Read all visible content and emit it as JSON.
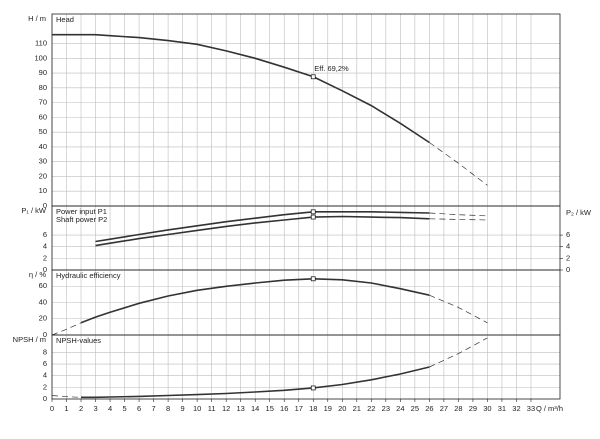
{
  "chart_data": [
    {
      "type": "line",
      "ylabel": "H / m",
      "ylim": [
        0,
        130
      ],
      "yticks": [
        0,
        10,
        20,
        30,
        40,
        50,
        60,
        70,
        80,
        90,
        100,
        110
      ],
      "xlim": [
        0,
        35
      ],
      "xticks": [
        0,
        1,
        2,
        3,
        4,
        5,
        6,
        7,
        8,
        9,
        10,
        11,
        12,
        13,
        14,
        15,
        16,
        17,
        18,
        19,
        20,
        21,
        22,
        23,
        24,
        25,
        26,
        27,
        28,
        29,
        30,
        31,
        32,
        33
      ],
      "x": [
        0,
        1,
        2,
        3,
        4,
        6,
        8,
        10,
        12,
        14,
        16,
        18,
        20,
        22,
        24,
        26,
        28,
        30
      ],
      "grid": true,
      "marker_x": 18,
      "annotation": "Eff. 69,2%",
      "series": [
        {
          "name": "Head",
          "color": "#333333",
          "solid_range": [
            0,
            26
          ],
          "values": [
            116,
            116,
            116,
            116,
            115.3,
            114,
            112,
            109.5,
            105,
            100,
            94,
            87.5,
            78,
            68,
            56,
            43,
            29,
            14
          ]
        }
      ]
    },
    {
      "type": "line",
      "ylabel": "P₁ / kW",
      "y2label": "P₂ / kW",
      "ylim": [
        0,
        11
      ],
      "yticks": [
        0,
        2,
        4,
        6
      ],
      "y2lim": [
        0,
        11
      ],
      "y2ticks": [
        0,
        2,
        4,
        6
      ],
      "xlim": [
        0,
        35
      ],
      "xticks": [
        0,
        1,
        2,
        3,
        4,
        5,
        6,
        7,
        8,
        9,
        10,
        11,
        12,
        13,
        14,
        15,
        16,
        17,
        18,
        19,
        20,
        21,
        22,
        23,
        24,
        25,
        26,
        27,
        28,
        29,
        30,
        31,
        32,
        33
      ],
      "x": [
        0,
        1,
        2,
        3,
        4,
        6,
        8,
        10,
        12,
        14,
        16,
        18,
        20,
        22,
        24,
        26,
        28,
        30
      ],
      "grid": true,
      "marker_x": 18,
      "series": [
        {
          "name": "Power input P1",
          "color": "#333333",
          "solid_range": [
            3,
            26
          ],
          "values": [
            null,
            null,
            null,
            4.9,
            5.3,
            6.1,
            6.9,
            7.6,
            8.3,
            8.9,
            9.5,
            10.0,
            10.0,
            10.0,
            9.9,
            9.8,
            9.5,
            9.3
          ]
        },
        {
          "name": "Shaft power P2",
          "color": "#333333",
          "solid_range": [
            3,
            26
          ],
          "axis": "y2",
          "values": [
            null,
            null,
            null,
            4.2,
            4.6,
            5.4,
            6.1,
            6.8,
            7.5,
            8.1,
            8.6,
            9.1,
            9.2,
            9.1,
            9.0,
            8.8,
            8.7,
            8.6
          ]
        }
      ]
    },
    {
      "type": "line",
      "ylabel": "η / %",
      "ylim": [
        0,
        80
      ],
      "yticks": [
        0,
        20,
        40,
        60
      ],
      "xlim": [
        0,
        35
      ],
      "xticks": [
        0,
        1,
        2,
        3,
        4,
        5,
        6,
        7,
        8,
        9,
        10,
        11,
        12,
        13,
        14,
        15,
        16,
        17,
        18,
        19,
        20,
        21,
        22,
        23,
        24,
        25,
        26,
        27,
        28,
        29,
        30,
        31,
        32,
        33
      ],
      "x": [
        0,
        1,
        2,
        3,
        4,
        6,
        8,
        10,
        12,
        14,
        16,
        18,
        20,
        22,
        24,
        26,
        28,
        30
      ],
      "grid": true,
      "marker_x": 18,
      "series": [
        {
          "name": "Hydraulic efficiency",
          "color": "#333333",
          "solid_range": [
            3,
            26
          ],
          "values": [
            0,
            7,
            15,
            22,
            28,
            39,
            48,
            55,
            60,
            64,
            67.5,
            69.2,
            68,
            64,
            57,
            49,
            34,
            15
          ]
        }
      ]
    },
    {
      "type": "line",
      "ylabel": "NPSH / m",
      "xlabel": "Q / m³/h",
      "ylim": [
        0,
        11
      ],
      "yticks": [
        0,
        2,
        4,
        6,
        8
      ],
      "xlim": [
        0,
        35
      ],
      "xticks": [
        0,
        1,
        2,
        3,
        4,
        5,
        6,
        7,
        8,
        9,
        10,
        11,
        12,
        13,
        14,
        15,
        16,
        17,
        18,
        19,
        20,
        21,
        22,
        23,
        24,
        25,
        26,
        27,
        28,
        29,
        30,
        31,
        32,
        33
      ],
      "x": [
        0,
        1,
        2,
        3,
        4,
        6,
        8,
        10,
        12,
        14,
        16,
        18,
        20,
        22,
        24,
        26,
        28,
        30
      ],
      "grid": true,
      "marker_x": 18,
      "series": [
        {
          "name": "NPSH-values",
          "color": "#333333",
          "solid_range": [
            3,
            26
          ],
          "values": [
            0.6,
            0.4,
            0.3,
            0.3,
            0.35,
            0.45,
            0.6,
            0.75,
            0.95,
            1.2,
            1.5,
            1.9,
            2.5,
            3.3,
            4.3,
            5.5,
            7.8,
            10.5
          ]
        }
      ]
    }
  ]
}
